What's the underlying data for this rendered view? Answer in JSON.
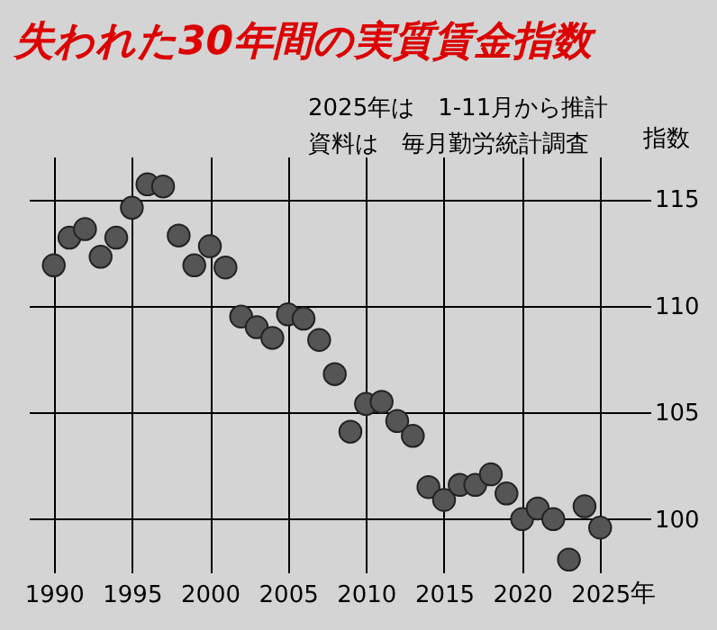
{
  "chart_data": {
    "type": "scatter",
    "title": "失われた30年間の実質賃金指数",
    "annotations": [
      "2025年は　1-11月から推計",
      "資料は　毎月勤労統計調査"
    ],
    "xlabel": "年",
    "ylabel": "指数",
    "x": [
      1990,
      1991,
      1992,
      1993,
      1994,
      1995,
      1996,
      1997,
      1998,
      1999,
      2000,
      2001,
      2002,
      2003,
      2004,
      2005,
      2006,
      2007,
      2008,
      2009,
      2010,
      2011,
      2012,
      2013,
      2014,
      2015,
      2016,
      2017,
      2018,
      2019,
      2020,
      2021,
      2022,
      2023,
      2024,
      2025
    ],
    "series": [
      {
        "color": "#555555",
        "values": [
          111.9,
          113.2,
          113.6,
          112.3,
          113.2,
          114.6,
          115.7,
          115.6,
          113.3,
          111.9,
          112.8,
          111.8,
          109.5,
          109.0,
          108.5,
          109.6,
          109.4,
          108.4,
          106.8,
          104.1,
          105.4,
          105.5,
          104.6,
          103.9,
          101.5,
          100.9,
          101.6,
          101.6,
          102.1,
          101.2,
          100.0,
          100.5,
          100.0,
          98.1,
          100.6,
          99.6
        ]
      }
    ],
    "xlim": [
      1988.4,
      2026.6
    ],
    "ylim": [
      97.5,
      117
    ],
    "xticks": [
      1990,
      1995,
      2000,
      2005,
      2010,
      2015,
      2020,
      2025
    ],
    "yticks": [
      100,
      105,
      110,
      115
    ],
    "grid": true,
    "marker": "circle",
    "legend": false
  }
}
